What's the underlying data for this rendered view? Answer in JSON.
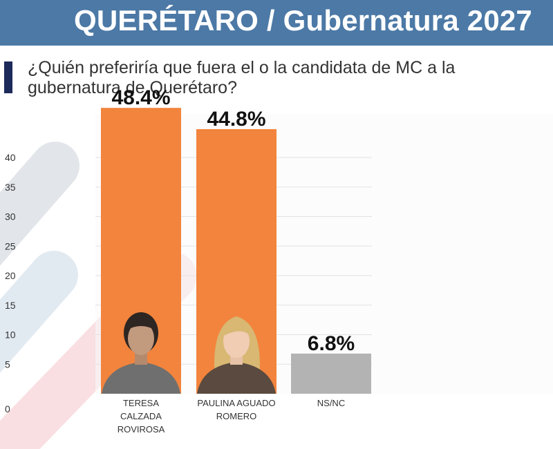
{
  "header": {
    "title": "QUERÉTARO / Gubernatura 2027"
  },
  "question": "¿Quién preferiría que fuera el o la candidata de MC a la gubernatura de Querétaro?",
  "colors": {
    "header_bg": "#4c79a6",
    "accent": "#1c2a5a",
    "candidate_bar": "#f2843d",
    "nsnc_bar": "#b3b3b3"
  },
  "chart_data": {
    "type": "bar",
    "title": "",
    "xlabel": "",
    "ylabel": "",
    "ylim": [
      0,
      45
    ],
    "yticks": [
      0,
      5,
      10,
      15,
      20,
      25,
      30,
      35,
      40
    ],
    "grid": true,
    "categories": [
      [
        "TERESA",
        "CALZADA",
        "ROVIROSA"
      ],
      [
        "PAULINA AGUADO",
        "ROMERO"
      ],
      [
        "NS/NC"
      ]
    ],
    "values": [
      48.4,
      44.8,
      6.8
    ],
    "value_labels": [
      "48.4%",
      "44.8%",
      "6.8%"
    ],
    "bar_colors": [
      "#f2843d",
      "#f2843d",
      "#b3b3b3"
    ],
    "has_photo": [
      true,
      true,
      false
    ]
  }
}
